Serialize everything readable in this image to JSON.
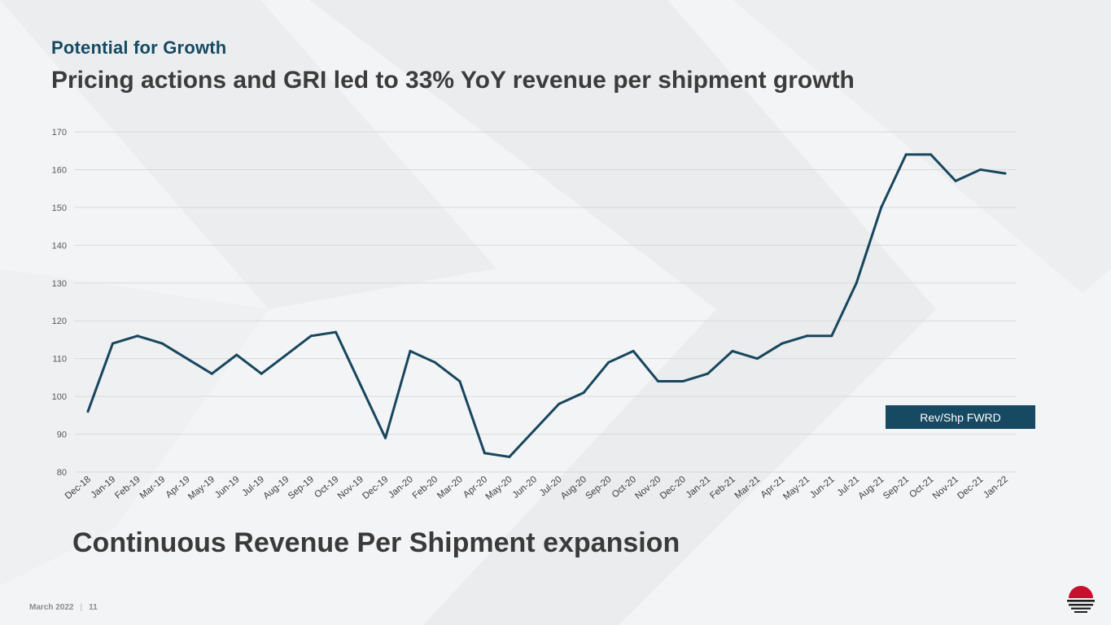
{
  "slide": {
    "kicker": "Potential for Growth",
    "headline": "Pricing actions and GRI led to 33% YoY revenue per shipment growth",
    "caption": "Continuous Revenue Per Shipment expansion",
    "footer_date": "March 2022",
    "footer_separator": "|",
    "page_number": "11"
  },
  "colors": {
    "brand": "#164a63",
    "line": "#17465e",
    "grid": "#d9d9d9",
    "logo_red": "#c8102e"
  },
  "chart_data": {
    "type": "line",
    "title": "",
    "xlabel": "",
    "ylabel": "",
    "ylim": [
      80,
      170
    ],
    "yticks": [
      80,
      90,
      100,
      110,
      120,
      130,
      140,
      150,
      160,
      170
    ],
    "grid": true,
    "legend": {
      "position": "bottom-right",
      "label": "Rev/Shp FWRD"
    },
    "categories": [
      "Dec-18",
      "Jan-19",
      "Feb-19",
      "Mar-19",
      "Apr-19",
      "May-19",
      "Jun-19",
      "Jul-19",
      "Aug-19",
      "Sep-19",
      "Oct-19",
      "Nov-19",
      "Dec-19",
      "Jan-20",
      "Feb-20",
      "Mar-20",
      "Apr-20",
      "May-20",
      "Jun-20",
      "Jul-20",
      "Aug-20",
      "Sep-20",
      "Oct-20",
      "Nov-20",
      "Dec-20",
      "Jan-21",
      "Feb-21",
      "Mar-21",
      "Apr-21",
      "May-21",
      "Jun-21",
      "Jul-21",
      "Aug-21",
      "Sep-21",
      "Oct-21",
      "Nov-21",
      "Dec-21",
      "Jan-22"
    ],
    "series": [
      {
        "name": "Rev/Shp FWRD",
        "values": [
          96,
          114,
          116,
          114,
          110,
          106,
          111,
          106,
          111,
          116,
          117,
          103,
          89,
          112,
          109,
          104,
          85,
          84,
          91,
          98,
          101,
          109,
          112,
          104,
          104,
          106,
          112,
          110,
          114,
          116,
          116,
          130,
          150,
          164,
          164,
          157,
          160,
          159
        ]
      }
    ]
  }
}
